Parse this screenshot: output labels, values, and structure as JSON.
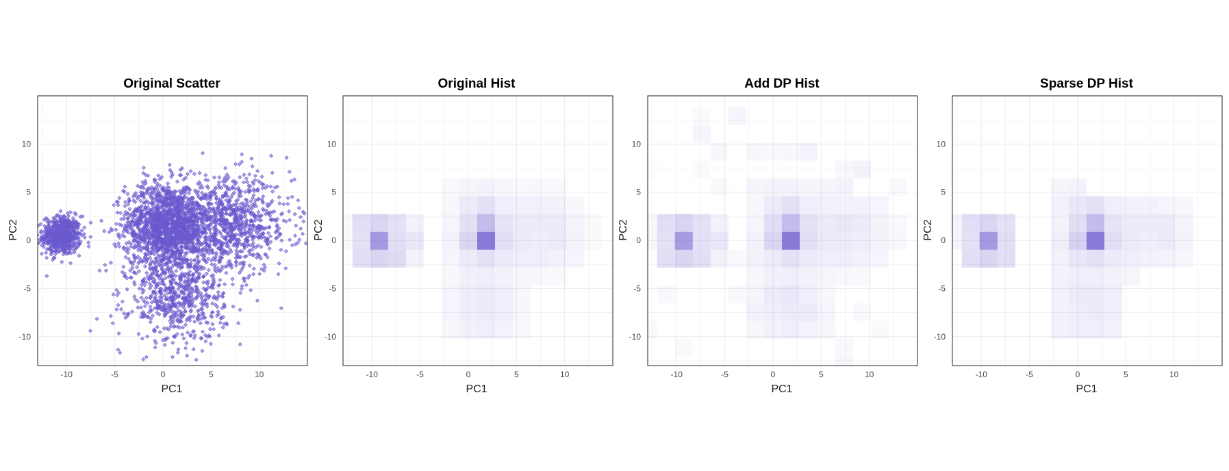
{
  "colors": {
    "accent": "#6a5acd",
    "grid": "#ebebeb",
    "frame": "#222222"
  },
  "chart_data": [
    {
      "type": "scatter",
      "title": "Original Scatter",
      "xlabel": "PC1",
      "ylabel": "PC2",
      "xlim": [
        -13,
        15
      ],
      "ylim": [
        -13,
        15
      ],
      "xticks": [
        -10,
        -5,
        0,
        5,
        10
      ],
      "yticks": [
        -10,
        -5,
        0,
        5,
        10
      ],
      "grid": true,
      "clusters": [
        {
          "center": [
            -10.5,
            0.5
          ],
          "sd": [
            1.0,
            1.0
          ],
          "n": 600
        },
        {
          "center": [
            0.5,
            1.5
          ],
          "sd": [
            2.2,
            2.2
          ],
          "n": 1600
        },
        {
          "center": [
            7,
            1.5
          ],
          "sd": [
            3.2,
            2.5
          ],
          "n": 900
        },
        {
          "center": [
            1.5,
            -6
          ],
          "sd": [
            2.5,
            2.3
          ],
          "n": 600
        }
      ]
    },
    {
      "type": "heatmap",
      "title": "Original Hist",
      "xlabel": "PC1",
      "ylabel": "PC2",
      "xlim": [
        -13,
        15
      ],
      "ylim": [
        -13,
        15
      ],
      "xticks": [
        -10,
        -5,
        0,
        5,
        10
      ],
      "yticks": [
        -10,
        -5,
        0,
        5,
        10
      ],
      "grid": true,
      "bin_width": 1.85,
      "x_bins_start": -12.95,
      "y_bins_start": -1.9,
      "cells": [
        [
          -12.95,
          -0.05,
          0.03
        ],
        [
          -12.95,
          1.8,
          0.03
        ],
        [
          -11.1,
          -1.9,
          0.2
        ],
        [
          -11.1,
          -0.05,
          0.18
        ],
        [
          -11.1,
          1.8,
          0.2
        ],
        [
          -9.25,
          -1.9,
          0.25
        ],
        [
          -9.25,
          -0.05,
          0.62
        ],
        [
          -9.25,
          1.8,
          0.25
        ],
        [
          -7.4,
          -1.9,
          0.22
        ],
        [
          -7.4,
          -0.05,
          0.2
        ],
        [
          -7.4,
          1.8,
          0.18
        ],
        [
          -5.55,
          -1.9,
          0.08
        ],
        [
          -5.55,
          -0.05,
          0.15
        ],
        [
          -5.55,
          1.8,
          0.08
        ],
        [
          -3.7,
          -0.05,
          0.0
        ],
        [
          -1.85,
          -9.3,
          0.05
        ],
        [
          -1.85,
          -7.45,
          0.06
        ],
        [
          -1.85,
          -5.6,
          0.06
        ],
        [
          -1.85,
          -3.75,
          0.05
        ],
        [
          -1.85,
          -1.9,
          0.06
        ],
        [
          -1.85,
          -0.05,
          0.07
        ],
        [
          -1.85,
          1.8,
          0.06
        ],
        [
          -1.85,
          3.65,
          0.05
        ],
        [
          -1.85,
          5.5,
          0.04
        ],
        [
          0,
          -9.3,
          0.08
        ],
        [
          0,
          -7.45,
          0.1
        ],
        [
          0,
          -5.6,
          0.1
        ],
        [
          0,
          -3.75,
          0.09
        ],
        [
          0,
          -1.9,
          0.12
        ],
        [
          0,
          -0.05,
          0.25
        ],
        [
          0,
          1.8,
          0.18
        ],
        [
          0,
          3.65,
          0.12
        ],
        [
          0,
          5.5,
          0.06
        ],
        [
          1.85,
          -9.3,
          0.1
        ],
        [
          1.85,
          -7.45,
          0.12
        ],
        [
          1.85,
          -5.6,
          0.12
        ],
        [
          1.85,
          -3.75,
          0.1
        ],
        [
          1.85,
          -1.9,
          0.18
        ],
        [
          1.85,
          -0.05,
          0.8
        ],
        [
          1.85,
          1.8,
          0.4
        ],
        [
          1.85,
          3.65,
          0.18
        ],
        [
          1.85,
          5.5,
          0.07
        ],
        [
          3.7,
          -9.3,
          0.07
        ],
        [
          3.7,
          -7.45,
          0.1
        ],
        [
          3.7,
          -5.6,
          0.1
        ],
        [
          3.7,
          -3.75,
          0.08
        ],
        [
          3.7,
          -1.9,
          0.12
        ],
        [
          3.7,
          -0.05,
          0.2
        ],
        [
          3.7,
          1.8,
          0.16
        ],
        [
          3.7,
          3.65,
          0.1
        ],
        [
          3.7,
          5.5,
          0.05
        ],
        [
          5.55,
          -9.3,
          0.04
        ],
        [
          5.55,
          -7.45,
          0.05
        ],
        [
          5.55,
          -5.6,
          0.05
        ],
        [
          5.55,
          -3.75,
          0.05
        ],
        [
          5.55,
          -1.9,
          0.1
        ],
        [
          5.55,
          -0.05,
          0.12
        ],
        [
          5.55,
          1.8,
          0.12
        ],
        [
          5.55,
          3.65,
          0.09
        ],
        [
          5.55,
          5.5,
          0.04
        ],
        [
          7.4,
          -3.75,
          0.05
        ],
        [
          7.4,
          -1.9,
          0.1
        ],
        [
          7.4,
          -0.05,
          0.11
        ],
        [
          7.4,
          1.8,
          0.12
        ],
        [
          7.4,
          3.65,
          0.09
        ],
        [
          7.4,
          5.5,
          0.05
        ],
        [
          9.25,
          -3.75,
          0.04
        ],
        [
          9.25,
          -1.9,
          0.08
        ],
        [
          9.25,
          -0.05,
          0.12
        ],
        [
          9.25,
          1.8,
          0.12
        ],
        [
          9.25,
          3.65,
          0.08
        ],
        [
          9.25,
          5.5,
          0.04
        ],
        [
          11.1,
          -1.9,
          0.06
        ],
        [
          11.1,
          -0.05,
          0.07
        ],
        [
          11.1,
          1.8,
          0.07
        ],
        [
          11.1,
          3.65,
          0.05
        ],
        [
          12.95,
          -0.05,
          0.03
        ],
        [
          12.95,
          1.8,
          0.03
        ]
      ]
    },
    {
      "type": "heatmap",
      "title": "Add DP Hist",
      "xlabel": "PC1",
      "ylabel": "PC2",
      "xlim": [
        -13,
        15
      ],
      "ylim": [
        -13,
        15
      ],
      "xticks": [
        -10,
        -5,
        0,
        5,
        10
      ],
      "yticks": [
        -10,
        -5,
        0,
        5,
        10
      ],
      "grid": true,
      "bin_width": 1.85,
      "cells": [
        [
          -12.95,
          -0.05,
          0.05
        ],
        [
          -12.95,
          1.8,
          0.05
        ],
        [
          -12.95,
          -9.3,
          0.03
        ],
        [
          -12.95,
          7.35,
          0.02
        ],
        [
          -11.1,
          -1.9,
          0.2
        ],
        [
          -11.1,
          -0.05,
          0.18
        ],
        [
          -11.1,
          1.8,
          0.2
        ],
        [
          -11.1,
          -5.6,
          0.04
        ],
        [
          -9.25,
          -1.9,
          0.25
        ],
        [
          -9.25,
          -0.05,
          0.6
        ],
        [
          -9.25,
          1.8,
          0.26
        ],
        [
          -9.25,
          -11.15,
          0.03
        ],
        [
          -7.4,
          -1.9,
          0.2
        ],
        [
          -7.4,
          -0.05,
          0.18
        ],
        [
          -7.4,
          1.8,
          0.18
        ],
        [
          -7.4,
          11.05,
          0.06
        ],
        [
          -7.4,
          12.9,
          0.03
        ],
        [
          -7.4,
          7.35,
          0.03
        ],
        [
          -5.55,
          -1.9,
          0.08
        ],
        [
          -5.55,
          -0.05,
          0.14
        ],
        [
          -5.55,
          1.8,
          0.08
        ],
        [
          -5.55,
          5.5,
          0.03
        ],
        [
          -5.55,
          9.2,
          0.05
        ],
        [
          -3.7,
          12.9,
          0.06
        ],
        [
          -3.7,
          -5.6,
          0.04
        ],
        [
          -3.7,
          -1.9,
          0.04
        ],
        [
          -1.85,
          -9.3,
          0.05
        ],
        [
          -1.85,
          -7.45,
          0.08
        ],
        [
          -1.85,
          -5.6,
          0.06
        ],
        [
          -1.85,
          -3.75,
          0.05
        ],
        [
          -1.85,
          -1.9,
          0.08
        ],
        [
          -1.85,
          -0.05,
          0.08
        ],
        [
          -1.85,
          1.8,
          0.06
        ],
        [
          -1.85,
          3.65,
          0.05
        ],
        [
          -1.85,
          5.5,
          0.06
        ],
        [
          -1.85,
          9.2,
          0.05
        ],
        [
          0,
          -9.3,
          0.08
        ],
        [
          0,
          -7.45,
          0.1
        ],
        [
          0,
          -5.6,
          0.12
        ],
        [
          0,
          -3.75,
          0.09
        ],
        [
          0,
          -1.9,
          0.12
        ],
        [
          0,
          -0.05,
          0.25
        ],
        [
          0,
          1.8,
          0.2
        ],
        [
          0,
          3.65,
          0.12
        ],
        [
          0,
          5.5,
          0.07
        ],
        [
          0,
          9.2,
          0.04
        ],
        [
          1.85,
          -9.3,
          0.1
        ],
        [
          1.85,
          -7.45,
          0.12
        ],
        [
          1.85,
          -5.6,
          0.14
        ],
        [
          1.85,
          -3.75,
          0.1
        ],
        [
          1.85,
          -1.9,
          0.18
        ],
        [
          1.85,
          -0.05,
          0.8
        ],
        [
          1.85,
          1.8,
          0.4
        ],
        [
          1.85,
          3.65,
          0.18
        ],
        [
          1.85,
          5.5,
          0.07
        ],
        [
          1.85,
          9.2,
          0.05
        ],
        [
          3.7,
          -9.3,
          0.07
        ],
        [
          3.7,
          -7.45,
          0.12
        ],
        [
          3.7,
          -5.6,
          0.1
        ],
        [
          3.7,
          -3.75,
          0.08
        ],
        [
          3.7,
          -1.9,
          0.12
        ],
        [
          3.7,
          -0.05,
          0.2
        ],
        [
          3.7,
          1.8,
          0.18
        ],
        [
          3.7,
          3.65,
          0.1
        ],
        [
          3.7,
          5.5,
          0.06
        ],
        [
          3.7,
          9.2,
          0.07
        ],
        [
          5.55,
          -9.3,
          0.05
        ],
        [
          5.55,
          -7.45,
          0.06
        ],
        [
          5.55,
          -5.6,
          0.05
        ],
        [
          5.55,
          -3.75,
          0.06
        ],
        [
          5.55,
          -1.9,
          0.1
        ],
        [
          5.55,
          -0.05,
          0.12
        ],
        [
          5.55,
          1.8,
          0.12
        ],
        [
          5.55,
          3.65,
          0.09
        ],
        [
          5.55,
          5.5,
          0.06
        ],
        [
          7.4,
          -3.75,
          0.05
        ],
        [
          7.4,
          -1.9,
          0.1
        ],
        [
          7.4,
          -0.05,
          0.12
        ],
        [
          7.4,
          1.8,
          0.14
        ],
        [
          7.4,
          3.65,
          0.08
        ],
        [
          7.4,
          5.5,
          0.07
        ],
        [
          7.4,
          7.35,
          0.05
        ],
        [
          7.4,
          -12.95,
          0.06
        ],
        [
          7.4,
          -11.1,
          0.04
        ],
        [
          9.25,
          -3.75,
          0.04
        ],
        [
          9.25,
          -1.9,
          0.08
        ],
        [
          9.25,
          -0.05,
          0.11
        ],
        [
          9.25,
          1.8,
          0.12
        ],
        [
          9.25,
          3.65,
          0.08
        ],
        [
          9.25,
          7.35,
          0.07
        ],
        [
          9.25,
          -7.45,
          0.04
        ],
        [
          11.1,
          -1.9,
          0.06
        ],
        [
          11.1,
          -0.05,
          0.07
        ],
        [
          11.1,
          1.8,
          0.08
        ],
        [
          11.1,
          3.65,
          0.06
        ],
        [
          11.1,
          -9.3,
          0.03
        ],
        [
          12.95,
          -0.05,
          0.05
        ],
        [
          12.95,
          1.8,
          0.04
        ],
        [
          12.95,
          5.5,
          0.04
        ]
      ]
    },
    {
      "type": "heatmap",
      "title": "Sparse DP Hist",
      "xlabel": "PC1",
      "ylabel": "PC2",
      "xlim": [
        -13,
        15
      ],
      "ylim": [
        -13,
        15
      ],
      "xticks": [
        -10,
        -5,
        0,
        5,
        10
      ],
      "yticks": [
        -10,
        -5,
        0,
        5,
        10
      ],
      "grid": true,
      "bin_width": 1.85,
      "cells": [
        [
          -12.95,
          -0.05,
          0.06
        ],
        [
          -12.95,
          1.8,
          0.06
        ],
        [
          -11.1,
          -1.9,
          0.2
        ],
        [
          -11.1,
          -0.05,
          0.18
        ],
        [
          -11.1,
          1.8,
          0.2
        ],
        [
          -9.25,
          -1.9,
          0.25
        ],
        [
          -9.25,
          -0.05,
          0.62
        ],
        [
          -9.25,
          1.8,
          0.25
        ],
        [
          -7.4,
          -1.9,
          0.2
        ],
        [
          -7.4,
          -0.05,
          0.2
        ],
        [
          -7.4,
          1.8,
          0.18
        ],
        [
          -1.85,
          -9.3,
          0.08
        ],
        [
          -1.85,
          -7.45,
          0.08
        ],
        [
          -1.85,
          -5.6,
          0.08
        ],
        [
          -1.85,
          -3.75,
          0.08
        ],
        [
          -1.85,
          -1.9,
          0.08
        ],
        [
          -1.85,
          -0.05,
          0.1
        ],
        [
          -1.85,
          1.8,
          0.08
        ],
        [
          -1.85,
          3.65,
          0.08
        ],
        [
          -1.85,
          5.5,
          0.06
        ],
        [
          0,
          -9.3,
          0.1
        ],
        [
          0,
          -7.45,
          0.1
        ],
        [
          0,
          -5.6,
          0.12
        ],
        [
          0,
          -3.75,
          0.1
        ],
        [
          0,
          -1.9,
          0.15
        ],
        [
          0,
          -0.05,
          0.28
        ],
        [
          0,
          1.8,
          0.2
        ],
        [
          0,
          3.65,
          0.14
        ],
        [
          0,
          5.5,
          0.07
        ],
        [
          1.85,
          -9.3,
          0.1
        ],
        [
          1.85,
          -7.45,
          0.12
        ],
        [
          1.85,
          -5.6,
          0.12
        ],
        [
          1.85,
          -3.75,
          0.1
        ],
        [
          1.85,
          -1.9,
          0.18
        ],
        [
          1.85,
          -0.05,
          0.8
        ],
        [
          1.85,
          1.8,
          0.4
        ],
        [
          1.85,
          3.65,
          0.18
        ],
        [
          3.7,
          -9.3,
          0.08
        ],
        [
          3.7,
          -7.45,
          0.1
        ],
        [
          3.7,
          -5.6,
          0.1
        ],
        [
          3.7,
          -3.75,
          0.08
        ],
        [
          3.7,
          -1.9,
          0.12
        ],
        [
          3.7,
          -0.05,
          0.2
        ],
        [
          3.7,
          1.8,
          0.16
        ],
        [
          3.7,
          3.65,
          0.1
        ],
        [
          5.55,
          -3.75,
          0.06
        ],
        [
          5.55,
          -1.9,
          0.1
        ],
        [
          5.55,
          -0.05,
          0.12
        ],
        [
          5.55,
          1.8,
          0.12
        ],
        [
          5.55,
          3.65,
          0.08
        ],
        [
          7.4,
          -1.9,
          0.08
        ],
        [
          7.4,
          -0.05,
          0.1
        ],
        [
          7.4,
          1.8,
          0.12
        ],
        [
          7.4,
          3.65,
          0.08
        ],
        [
          9.25,
          -1.9,
          0.07
        ],
        [
          9.25,
          -0.05,
          0.12
        ],
        [
          9.25,
          1.8,
          0.12
        ],
        [
          9.25,
          3.65,
          0.06
        ],
        [
          11.1,
          -1.9,
          0.05
        ],
        [
          11.1,
          -0.05,
          0.07
        ],
        [
          11.1,
          1.8,
          0.07
        ],
        [
          11.1,
          3.65,
          0.05
        ]
      ]
    }
  ]
}
